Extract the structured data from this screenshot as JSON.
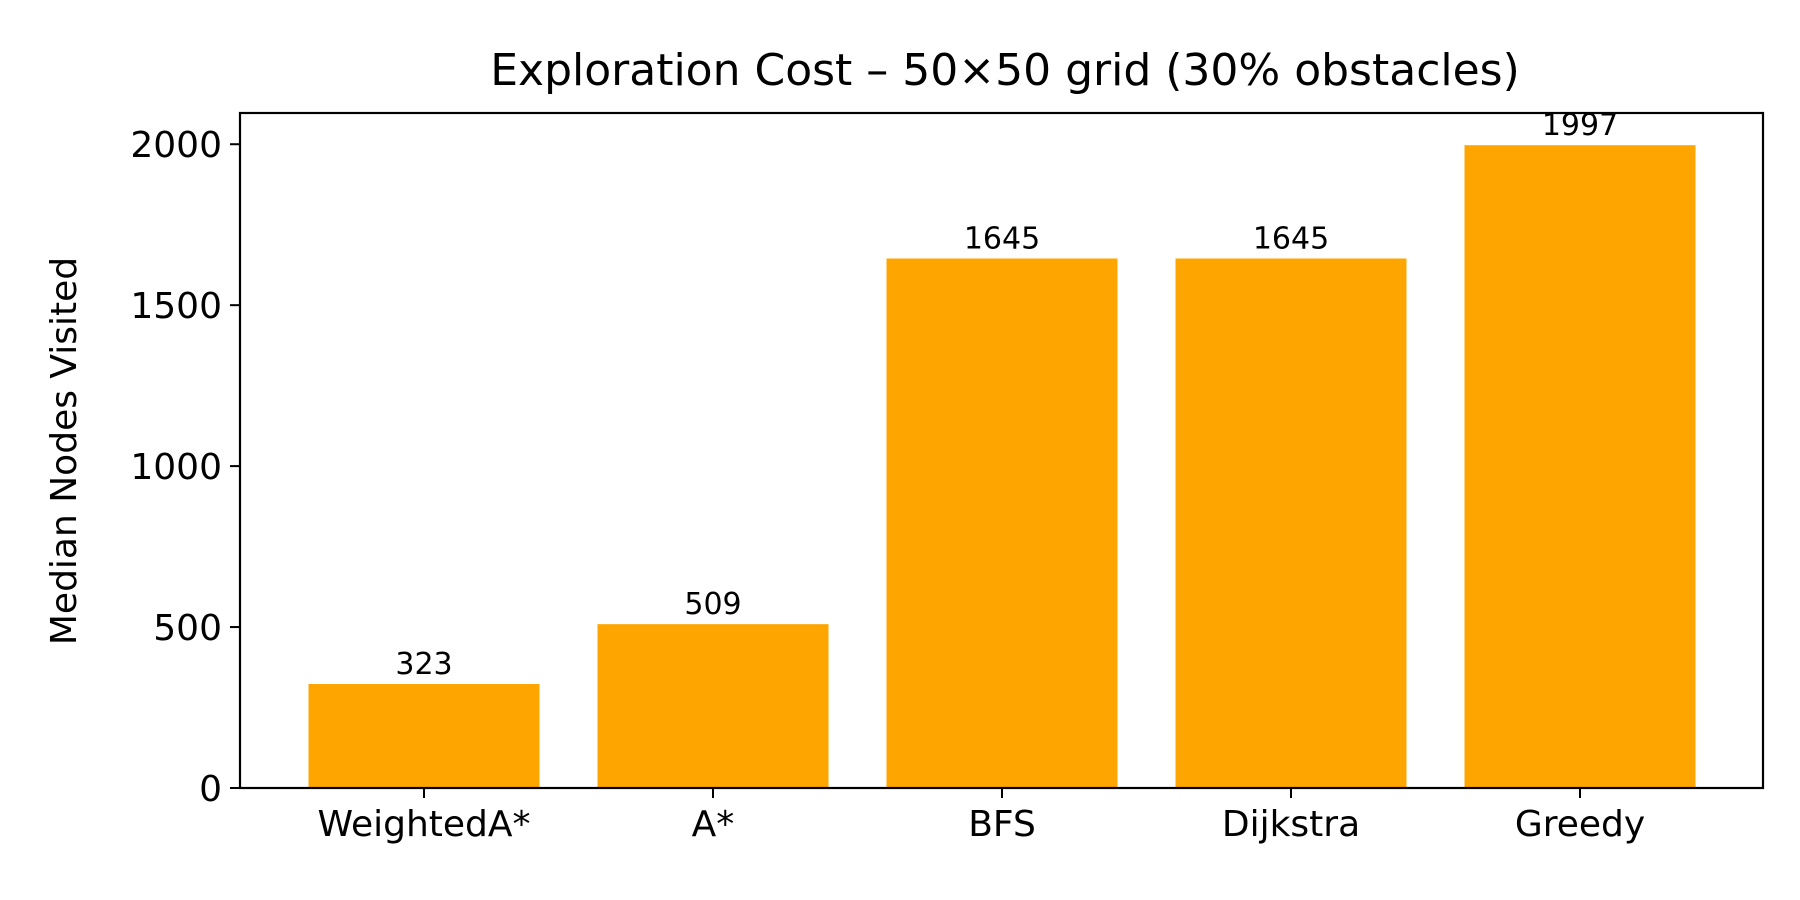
{
  "chart_data": {
    "type": "bar",
    "title": "Exploration Cost – 50×50 grid (30% obstacles)",
    "xlabel": "",
    "ylabel": "Median Nodes Visited",
    "categories": [
      "WeightedA*",
      "A*",
      "BFS",
      "Dijkstra",
      "Greedy"
    ],
    "values": [
      323,
      509,
      1645,
      1645,
      1997
    ],
    "data_labels": [
      "323",
      "509",
      "1645",
      "1645",
      "1997"
    ],
    "y_ticks": [
      0,
      500,
      1000,
      1500,
      2000
    ],
    "ylim": [
      0,
      2097
    ],
    "grid": false,
    "legend": "none",
    "bar_color": "#FFA500"
  }
}
